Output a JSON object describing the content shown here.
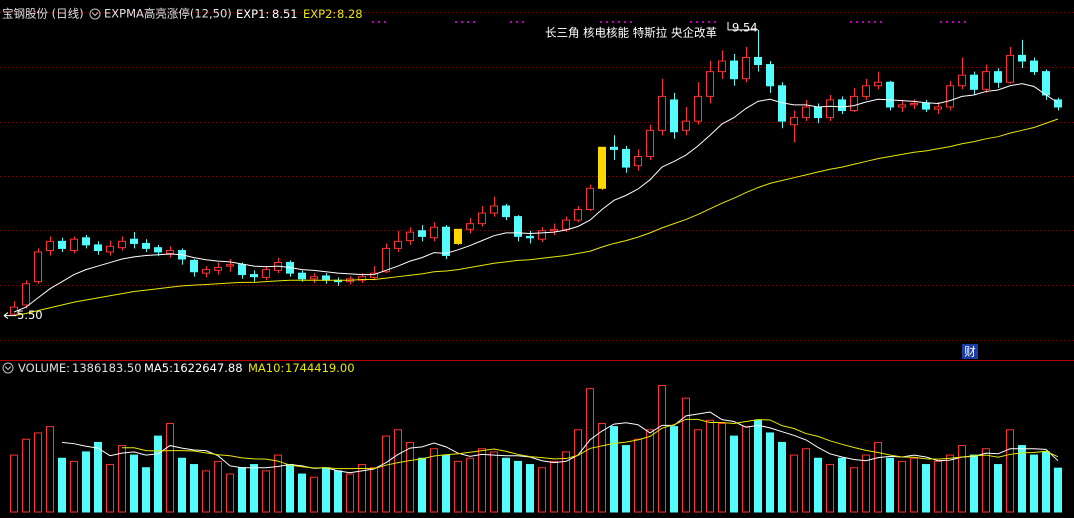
{
  "chart_data": [
    {
      "type": "candlestick",
      "title": "宝钢股份 (日线)",
      "indicator": "EXPMA高亮涨停(12,50)",
      "annotation": "长三角 核电核能 特斯拉 央企改革",
      "marker": "财",
      "max_label": 9.54,
      "min_label": {
        "value": 5.5,
        "label": "5.50"
      },
      "up_color": "#ff3232",
      "down_color": "#54fcfc",
      "limit_up": [
        37,
        49
      ],
      "limit_up_color": "#ffd700",
      "ylim": [
        4.9,
        9.85
      ],
      "open": [
        5.52,
        5.65,
        5.98,
        6.42,
        6.55,
        6.42,
        6.6,
        6.5,
        6.4,
        6.46,
        6.58,
        6.52,
        6.46,
        6.38,
        6.42,
        6.28,
        6.1,
        6.14,
        6.2,
        6.22,
        6.08,
        6.04,
        6.14,
        6.25,
        6.1,
        6.02,
        6.06,
        6.0,
        5.98,
        6.0,
        6.04,
        6.12,
        6.45,
        6.56,
        6.7,
        6.6,
        6.75,
        6.52,
        6.72,
        6.8,
        6.95,
        7.05,
        6.9,
        6.62,
        6.58,
        6.7,
        6.72,
        6.85,
        7.0,
        7.3,
        7.88,
        7.85,
        7.62,
        7.75,
        8.12,
        8.55,
        8.12,
        8.25,
        8.6,
        8.95,
        9.1,
        8.85,
        9.15,
        9.05,
        8.75,
        8.2,
        8.3,
        8.45,
        8.3,
        8.55,
        8.4,
        8.6,
        8.75,
        8.8,
        8.45,
        8.48,
        8.5,
        8.42,
        8.45,
        8.75,
        8.9,
        8.7,
        8.95,
        8.8,
        9.18,
        9.1,
        8.95,
        8.55
      ],
      "high": [
        5.7,
        6.0,
        6.45,
        6.62,
        6.6,
        6.62,
        6.64,
        6.55,
        6.56,
        6.62,
        6.68,
        6.58,
        6.5,
        6.48,
        6.45,
        6.3,
        6.2,
        6.25,
        6.3,
        6.25,
        6.14,
        6.2,
        6.32,
        6.28,
        6.14,
        6.1,
        6.1,
        6.04,
        6.06,
        6.1,
        6.2,
        6.52,
        6.7,
        6.75,
        6.78,
        6.82,
        6.78,
        6.72,
        6.88,
        7.05,
        7.18,
        7.08,
        6.92,
        6.7,
        6.75,
        6.8,
        6.9,
        7.05,
        7.35,
        7.88,
        8.05,
        7.9,
        7.85,
        8.2,
        8.85,
        8.65,
        8.45,
        8.8,
        9.1,
        9.25,
        9.2,
        9.3,
        9.54,
        9.1,
        8.8,
        8.4,
        8.55,
        8.5,
        8.62,
        8.6,
        8.72,
        8.85,
        8.95,
        8.82,
        8.55,
        8.56,
        8.55,
        8.52,
        8.82,
        9.15,
        8.95,
        9.05,
        9.0,
        9.3,
        9.4,
        9.15,
        8.98,
        8.58
      ],
      "low": [
        5.5,
        5.6,
        5.95,
        6.35,
        6.4,
        6.38,
        6.45,
        6.36,
        6.35,
        6.42,
        6.45,
        6.4,
        6.34,
        6.32,
        6.22,
        6.05,
        6.04,
        6.08,
        6.12,
        6.02,
        5.98,
        6.0,
        6.1,
        6.05,
        5.98,
        5.96,
        5.95,
        5.92,
        5.94,
        5.96,
        6.0,
        6.1,
        6.4,
        6.5,
        6.55,
        6.55,
        6.3,
        6.5,
        6.66,
        6.76,
        6.9,
        6.85,
        6.55,
        6.52,
        6.54,
        6.64,
        6.68,
        6.82,
        6.98,
        7.28,
        7.7,
        7.52,
        7.55,
        7.7,
        8.05,
        8.0,
        8.05,
        8.2,
        8.5,
        8.85,
        8.75,
        8.8,
        8.95,
        8.65,
        8.15,
        7.95,
        8.25,
        8.22,
        8.25,
        8.35,
        8.38,
        8.55,
        8.7,
        8.4,
        8.38,
        8.42,
        8.38,
        8.35,
        8.4,
        8.7,
        8.62,
        8.65,
        8.72,
        8.78,
        9.0,
        8.9,
        8.55,
        8.4
      ],
      "close": [
        5.62,
        5.95,
        6.4,
        6.55,
        6.45,
        6.58,
        6.5,
        6.42,
        6.48,
        6.55,
        6.52,
        6.45,
        6.4,
        6.42,
        6.3,
        6.12,
        6.15,
        6.18,
        6.22,
        6.08,
        6.05,
        6.15,
        6.25,
        6.1,
        6.02,
        6.05,
        6.0,
        5.98,
        6.02,
        6.05,
        6.1,
        6.45,
        6.55,
        6.68,
        6.62,
        6.75,
        6.35,
        6.72,
        6.8,
        6.95,
        7.05,
        6.9,
        6.62,
        6.6,
        6.7,
        6.72,
        6.85,
        7.0,
        7.3,
        7.88,
        7.85,
        7.6,
        7.75,
        8.12,
        8.6,
        8.1,
        8.25,
        8.6,
        8.95,
        9.1,
        8.85,
        9.15,
        9.05,
        8.75,
        8.25,
        8.3,
        8.45,
        8.3,
        8.55,
        8.4,
        8.6,
        8.75,
        8.8,
        8.45,
        8.48,
        8.5,
        8.42,
        8.45,
        8.75,
        8.9,
        8.7,
        8.95,
        8.8,
        9.18,
        9.1,
        8.95,
        8.62,
        8.45
      ],
      "series": [
        {
          "name": "EXP1:",
          "color": "#ffffff",
          "last": 8.51,
          "values": [
            5.55,
            5.62,
            5.75,
            5.88,
            5.98,
            6.08,
            6.15,
            6.2,
            6.25,
            6.3,
            6.33,
            6.35,
            6.36,
            6.37,
            6.36,
            6.32,
            6.29,
            6.27,
            6.26,
            6.23,
            6.2,
            6.19,
            6.2,
            6.18,
            6.15,
            6.14,
            6.12,
            6.1,
            6.09,
            6.08,
            6.08,
            6.14,
            6.2,
            6.27,
            6.32,
            6.39,
            6.38,
            6.43,
            6.49,
            6.56,
            6.63,
            6.67,
            6.67,
            6.66,
            6.67,
            6.68,
            6.71,
            6.76,
            6.85,
            7.0,
            7.13,
            7.2,
            7.29,
            7.42,
            7.6,
            7.68,
            7.77,
            7.9,
            8.05,
            8.21,
            8.3,
            8.43,
            8.53,
            8.56,
            8.51,
            8.48,
            8.48,
            8.45,
            8.46,
            8.45,
            8.47,
            8.52,
            8.56,
            8.55,
            8.54,
            8.53,
            8.51,
            8.5,
            8.54,
            8.6,
            8.62,
            8.67,
            8.69,
            8.75,
            8.78,
            8.74,
            8.62,
            8.51
          ]
        },
        {
          "name": "EXP2:",
          "color": "#e8e800",
          "last": 8.28,
          "values": [
            5.5,
            5.53,
            5.57,
            5.61,
            5.65,
            5.69,
            5.72,
            5.75,
            5.78,
            5.81,
            5.84,
            5.86,
            5.88,
            5.9,
            5.92,
            5.93,
            5.94,
            5.95,
            5.96,
            5.97,
            5.97,
            5.98,
            5.99,
            6.0,
            6.0,
            6.0,
            6.0,
            6.0,
            6.0,
            6.01,
            6.01,
            6.03,
            6.05,
            6.07,
            6.09,
            6.12,
            6.13,
            6.15,
            6.18,
            6.21,
            6.24,
            6.26,
            6.28,
            6.29,
            6.31,
            6.33,
            6.35,
            6.38,
            6.41,
            6.47,
            6.52,
            6.56,
            6.61,
            6.67,
            6.74,
            6.8,
            6.86,
            6.93,
            7.01,
            7.09,
            7.16,
            7.24,
            7.31,
            7.37,
            7.41,
            7.45,
            7.49,
            7.53,
            7.57,
            7.6,
            7.64,
            7.68,
            7.72,
            7.75,
            7.78,
            7.81,
            7.83,
            7.86,
            7.89,
            7.93,
            7.96,
            8.0,
            8.03,
            8.08,
            8.12,
            8.16,
            8.22,
            8.28
          ]
        }
      ]
    },
    {
      "type": "bar",
      "name": "VOLUME:",
      "last": {
        "value": 1386183.5,
        "label": "1386183.50"
      },
      "ylim": [
        0,
        4300000
      ],
      "values": [
        1800000,
        2300000,
        2500000,
        2700000,
        1700000,
        1600000,
        1900000,
        2200000,
        1500000,
        2100000,
        1800000,
        1400000,
        2400000,
        2800000,
        1700000,
        1500000,
        1300000,
        1600000,
        1200000,
        1400000,
        1500000,
        1300000,
        1800000,
        1500000,
        1200000,
        1100000,
        1400000,
        1300000,
        1200000,
        1500000,
        1400000,
        2400000,
        2600000,
        2200000,
        1700000,
        2000000,
        1800000,
        1600000,
        1700000,
        2000000,
        1900000,
        1700000,
        1600000,
        1500000,
        1400000,
        1600000,
        1900000,
        2600000,
        3900000,
        2800000,
        2700000,
        2100000,
        2300000,
        2600000,
        4000000,
        2700000,
        3600000,
        2600000,
        2900000,
        2800000,
        2400000,
        2700000,
        2900000,
        2500000,
        2200000,
        1800000,
        2000000,
        1700000,
        1500000,
        1700000,
        1400000,
        1800000,
        2200000,
        1700000,
        1600000,
        1700000,
        1500000,
        1600000,
        1800000,
        2100000,
        1800000,
        2000000,
        1500000,
        2600000,
        2100000,
        1800000,
        1900000,
        1386183.5
      ],
      "series": [
        {
          "name": "MA5:",
          "color": "#ffffff",
          "last": 1622647.88,
          "values": [
            null,
            null,
            null,
            null,
            2200000,
            2160000,
            2080000,
            2020000,
            1780000,
            1860000,
            1900000,
            1800000,
            1840000,
            2100000,
            2020000,
            1960000,
            1940000,
            1780000,
            1460000,
            1400000,
            1400000,
            1400000,
            1440000,
            1500000,
            1460000,
            1380000,
            1400000,
            1300000,
            1240000,
            1300000,
            1360000,
            1560000,
            1820000,
            2020000,
            2060000,
            2180000,
            2060000,
            1860000,
            1760000,
            1820000,
            1800000,
            1780000,
            1780000,
            1740000,
            1620000,
            1560000,
            1600000,
            1800000,
            2280000,
            2560000,
            2780000,
            2820000,
            2760000,
            2500000,
            2740000,
            2740000,
            3040000,
            3100000,
            3160000,
            2920000,
            2860000,
            2680000,
            2740000,
            2660000,
            2540000,
            2420000,
            2280000,
            2040000,
            1840000,
            1740000,
            1660000,
            1620000,
            1720000,
            1760000,
            1740000,
            1800000,
            1740000,
            1620000,
            1640000,
            1740000,
            1760000,
            1860000,
            1840000,
            2000000,
            2000000,
            2000000,
            1980000,
            1622647.88
          ]
        },
        {
          "name": "MA10:",
          "color": "#e8e800",
          "last": {
            "value": 1744419,
            "label": "1744419.00"
          },
          "values": [
            null,
            null,
            null,
            null,
            null,
            null,
            null,
            null,
            null,
            2030000,
            2030000,
            1940000,
            1930000,
            1940000,
            1940000,
            1930000,
            1870000,
            1810000,
            1780000,
            1710000,
            1680000,
            1670000,
            1610000,
            1480000,
            1430000,
            1390000,
            1400000,
            1370000,
            1370000,
            1380000,
            1370000,
            1480000,
            1560000,
            1630000,
            1680000,
            1770000,
            1810000,
            1840000,
            1890000,
            1940000,
            1990000,
            1920000,
            1820000,
            1750000,
            1720000,
            1680000,
            1690000,
            1790000,
            2010000,
            2090000,
            2170000,
            2210000,
            2280000,
            2390000,
            2650000,
            2760000,
            2930000,
            2930000,
            2830000,
            2830000,
            2800000,
            2860000,
            2920000,
            2910000,
            2730000,
            2640000,
            2480000,
            2390000,
            2250000,
            2140000,
            2040000,
            1950000,
            1880000,
            1800000,
            1740000,
            1730000,
            1680000,
            1670000,
            1700000,
            1740000,
            1780000,
            1800000,
            1730000,
            1820000,
            1870000,
            1880000,
            1920000,
            1744419
          ]
        }
      ]
    }
  ]
}
